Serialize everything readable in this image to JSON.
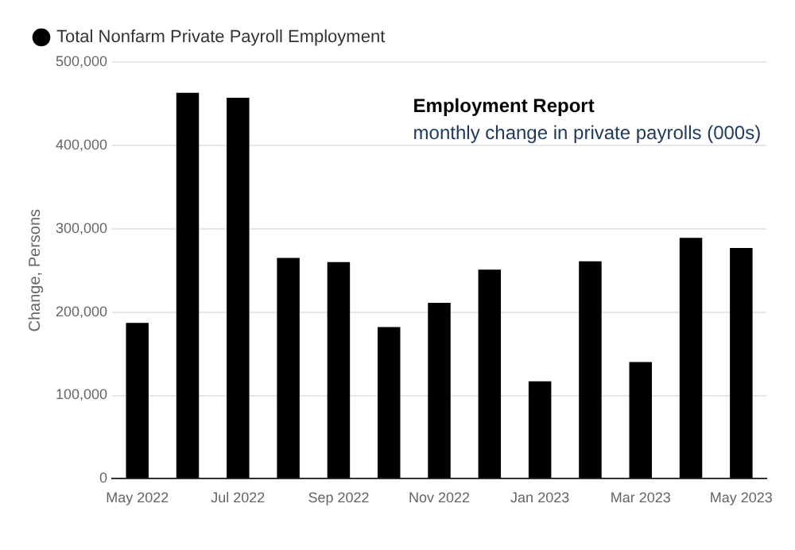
{
  "chart_data": {
    "type": "bar",
    "ylabel": "Change, Persons",
    "categories": [
      "May 2022",
      null,
      "Jul 2022",
      null,
      "Sep 2022",
      null,
      "Nov 2022",
      null,
      "Jan 2023",
      null,
      "Mar 2023",
      null,
      "May 2023"
    ],
    "series": [
      {
        "name": "Total Nonfarm Private Payroll Employment",
        "color": "#000000",
        "values": [
          187000,
          463000,
          457000,
          265000,
          260000,
          182000,
          211000,
          251000,
          117000,
          261000,
          140000,
          289000,
          277000
        ]
      }
    ],
    "ylim": [
      0,
      500000
    ],
    "yticks": [
      {
        "value": 0,
        "label": "0"
      },
      {
        "value": 100000,
        "label": "100,000"
      },
      {
        "value": 200000,
        "label": "200,000"
      },
      {
        "value": 300000,
        "label": "300,000"
      },
      {
        "value": 400000,
        "label": "400,000"
      },
      {
        "value": 500000,
        "label": "500,000"
      }
    ],
    "grid": "y",
    "legend": "top left",
    "marker": "circle",
    "annotations": [
      "Employment Report",
      "monthly change in private payrolls (000s)"
    ]
  }
}
